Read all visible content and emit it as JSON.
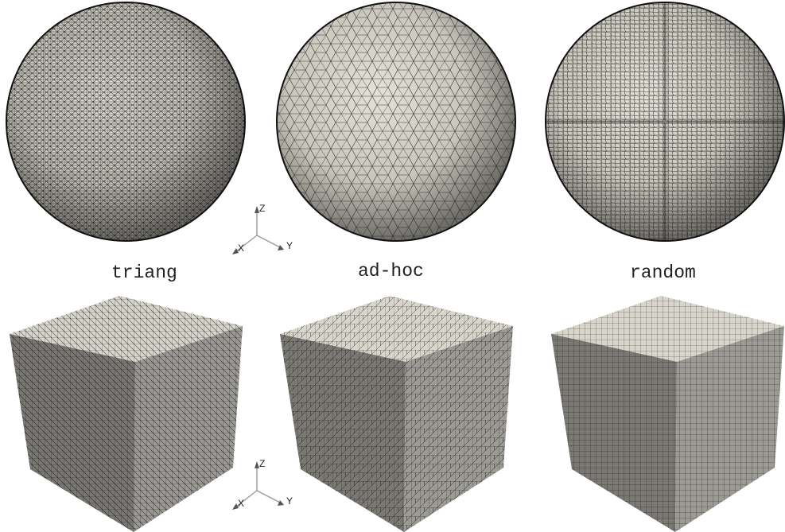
{
  "labels": {
    "triang": "triang",
    "adhoc": "ad-hoc",
    "random": "random"
  },
  "axes": {
    "x": "X",
    "y": "Y",
    "z": "Z"
  },
  "colors": {
    "surface": "#d9d6cc",
    "surface_shade": "#9a978f",
    "cube_top": "#d8d5cb",
    "cube_left": "#7a7873",
    "cube_right": "#9c9a94",
    "mesh_line": "#1a1a1a"
  }
}
